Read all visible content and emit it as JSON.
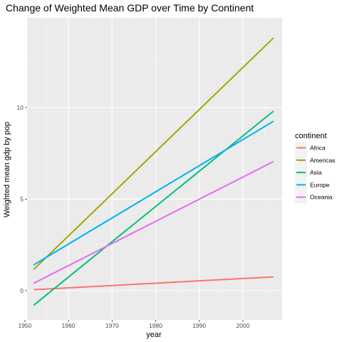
{
  "chart_data": {
    "type": "line",
    "title": "Change of Weighted Mean GDP over Time by Continent",
    "xlabel": "year",
    "ylabel": "Weighted mean gdp by pop",
    "xlim": [
      1950.5,
      2009
    ],
    "ylim": [
      -1.6,
      14.9
    ],
    "x_ticks": [
      1950,
      1960,
      1970,
      1980,
      1990,
      2000
    ],
    "x_tick_labels": [
      "1950",
      "1960",
      "1970",
      "1980",
      "1990",
      "2000"
    ],
    "y_ticks": [
      0,
      5,
      10
    ],
    "y_tick_labels": [
      "0",
      "5",
      "10"
    ],
    "grid": true,
    "legend": {
      "title": "continent",
      "position": "right"
    },
    "series": [
      {
        "name": "Africa",
        "color": "#F8766D",
        "x": [
          1952,
          2007
        ],
        "y": [
          0.05,
          0.75
        ]
      },
      {
        "name": "Americas",
        "color": "#A3A500",
        "x": [
          1952,
          2007
        ],
        "y": [
          1.15,
          13.8
        ]
      },
      {
        "name": "Asia",
        "color": "#00BF7D",
        "x": [
          1952,
          2007
        ],
        "y": [
          -0.8,
          9.8
        ]
      },
      {
        "name": "Europe",
        "color": "#00B0F6",
        "x": [
          1952,
          2007
        ],
        "y": [
          1.4,
          9.25
        ]
      },
      {
        "name": "Oceania",
        "color": "#E76BF3",
        "x": [
          1952,
          2007
        ],
        "y": [
          0.4,
          7.05
        ]
      }
    ]
  }
}
